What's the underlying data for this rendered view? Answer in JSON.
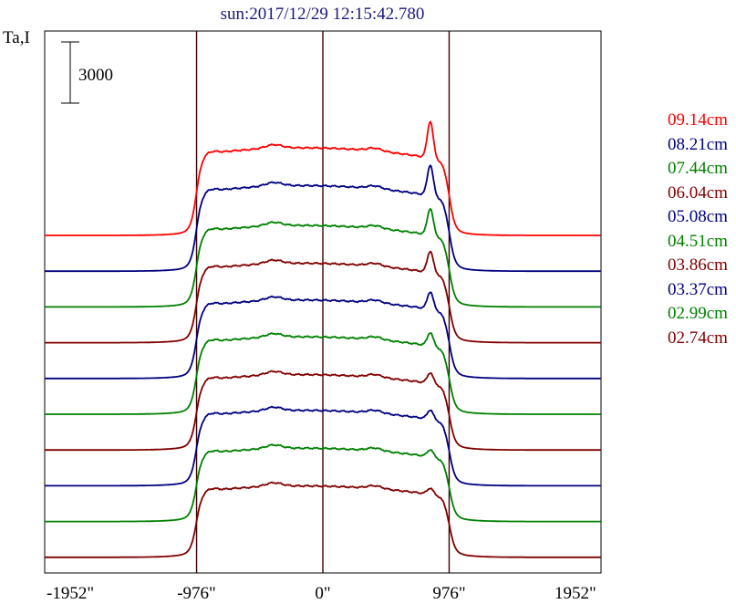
{
  "chart_data": {
    "type": "line",
    "title": "sun:2017/12/29 12:15:42.780",
    "ylabel": "Ta,I",
    "scale_bar_label": "3000",
    "xlim": [
      -2150,
      2150
    ],
    "x_ticks": [
      {
        "value": -1952,
        "label": "-1952\""
      },
      {
        "value": -976,
        "label": "-976\""
      },
      {
        "value": 0,
        "label": "0\""
      },
      {
        "value": 976,
        "label": "976\""
      },
      {
        "value": 1952,
        "label": "1952\""
      }
    ],
    "vertical_lines": [
      -976,
      0,
      976
    ],
    "series": [
      {
        "name": "09.14cm",
        "color": "#ff0000",
        "peak": 1800,
        "disk": 4300
      },
      {
        "name": "08.21cm",
        "color": "#000080",
        "peak": 1500,
        "disk": 4200
      },
      {
        "name": "07.44cm",
        "color": "#008000",
        "peak": 1300,
        "disk": 4000
      },
      {
        "name": "06.04cm",
        "color": "#800000",
        "peak": 1050,
        "disk": 3900
      },
      {
        "name": "05.08cm",
        "color": "#000080",
        "peak": 850,
        "disk": 3850
      },
      {
        "name": "04.51cm",
        "color": "#008000",
        "peak": 650,
        "disk": 3800
      },
      {
        "name": "03.86cm",
        "color": "#800000",
        "peak": 520,
        "disk": 3700
      },
      {
        "name": "03.37cm",
        "color": "#000080",
        "peak": 450,
        "disk": 3700
      },
      {
        "name": "02.99cm",
        "color": "#008000",
        "peak": 350,
        "disk": 3600
      },
      {
        "name": "02.74cm",
        "color": "#800000",
        "peak": 300,
        "disk": 3500
      }
    ]
  }
}
